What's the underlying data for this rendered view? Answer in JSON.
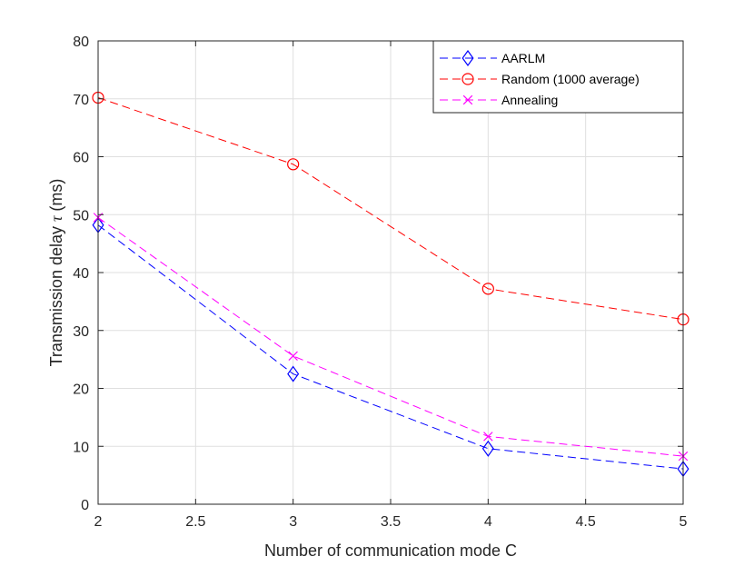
{
  "chart_data": {
    "type": "line",
    "title": "",
    "xlabel": "Number of communication mode C",
    "ylabel_prefix": "Transmission delay ",
    "ylabel_symbol": "τ",
    "ylabel_suffix": " (ms)",
    "xlim": [
      2,
      5
    ],
    "ylim": [
      0,
      80
    ],
    "xticks": [
      2,
      2.5,
      3,
      3.5,
      4,
      4.5,
      5
    ],
    "xtick_labels": [
      "2",
      "2.5",
      "3",
      "3.5",
      "4",
      "4.5",
      "5"
    ],
    "yticks": [
      0,
      10,
      20,
      30,
      40,
      50,
      60,
      70,
      80
    ],
    "ytick_labels": [
      "0",
      "10",
      "20",
      "30",
      "40",
      "50",
      "60",
      "70",
      "80"
    ],
    "grid": true,
    "legend_position": "top-right",
    "x": [
      2,
      3,
      4,
      5
    ],
    "series": [
      {
        "name": "AARLM",
        "values": [
          48.2,
          22.5,
          9.6,
          6.1
        ],
        "color": "#0000ff",
        "marker": "diamond"
      },
      {
        "name": "Random (1000 average)",
        "values": [
          70.2,
          58.7,
          37.2,
          31.9
        ],
        "color": "#ff0000",
        "marker": "circle"
      },
      {
        "name": "Annealing",
        "values": [
          49.5,
          25.6,
          11.7,
          8.3
        ],
        "color": "#ff00ff",
        "marker": "x"
      }
    ]
  }
}
